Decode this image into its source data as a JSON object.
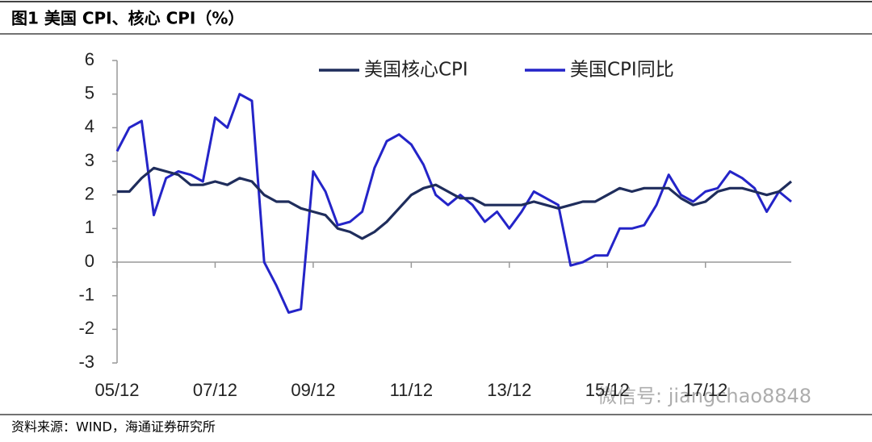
{
  "chart_data": {
    "type": "line",
    "title": "图1  美国 CPI、核心 CPI（%）",
    "source": "资料来源：WIND，海通证券研究所",
    "watermark": "微信号: jiangchao8848",
    "categories": [
      "05/12",
      null,
      null,
      null,
      null,
      null,
      null,
      null,
      "07/12",
      null,
      null,
      null,
      null,
      null,
      null,
      null,
      "09/12",
      null,
      null,
      null,
      null,
      null,
      null,
      null,
      "11/12",
      null,
      null,
      null,
      null,
      null,
      null,
      null,
      "13/12",
      null,
      null,
      null,
      null,
      null,
      null,
      null,
      "15/12",
      null,
      null,
      null,
      null,
      null,
      null,
      null,
      "17/12",
      null,
      null,
      null,
      null,
      null,
      null,
      null
    ],
    "series": [
      {
        "name": "美国核心CPI",
        "color": "#1f2d5c",
        "values": [
          2.1,
          2.1,
          2.5,
          2.8,
          2.7,
          2.6,
          2.3,
          2.3,
          2.4,
          2.3,
          2.5,
          2.4,
          2.0,
          1.8,
          1.8,
          1.6,
          1.5,
          1.4,
          1.0,
          0.9,
          0.7,
          0.9,
          1.2,
          1.6,
          2.0,
          2.2,
          2.3,
          2.1,
          1.9,
          1.9,
          1.7,
          1.7,
          1.7,
          1.7,
          1.8,
          1.7,
          1.6,
          1.7,
          1.8,
          1.8,
          2.0,
          2.2,
          2.1,
          2.2,
          2.2,
          2.2,
          1.9,
          1.7,
          1.8,
          2.1,
          2.2,
          2.2,
          2.1,
          2.0,
          2.1,
          2.4
        ]
      },
      {
        "name": "美国CPI同比",
        "color": "#2424c8",
        "values": [
          3.3,
          4.0,
          4.2,
          1.4,
          2.5,
          2.7,
          2.6,
          2.4,
          4.3,
          4.0,
          5.0,
          4.8,
          0.0,
          -0.7,
          -1.5,
          -1.4,
          2.7,
          2.1,
          1.1,
          1.2,
          1.5,
          2.8,
          3.6,
          3.8,
          3.5,
          2.9,
          2.0,
          1.7,
          2.0,
          1.7,
          1.2,
          1.5,
          1.0,
          1.5,
          2.1,
          1.9,
          1.7,
          -0.1,
          0.0,
          0.2,
          0.2,
          1.0,
          1.0,
          1.1,
          1.7,
          2.6,
          2.0,
          1.8,
          2.1,
          2.2,
          2.7,
          2.5,
          2.2,
          1.5,
          2.1,
          1.8
        ]
      }
    ],
    "ylim": [
      -3,
      6
    ],
    "yticks": [
      -3,
      -2,
      -1,
      0,
      1,
      2,
      3,
      4,
      5,
      6
    ],
    "legend": "top"
  }
}
